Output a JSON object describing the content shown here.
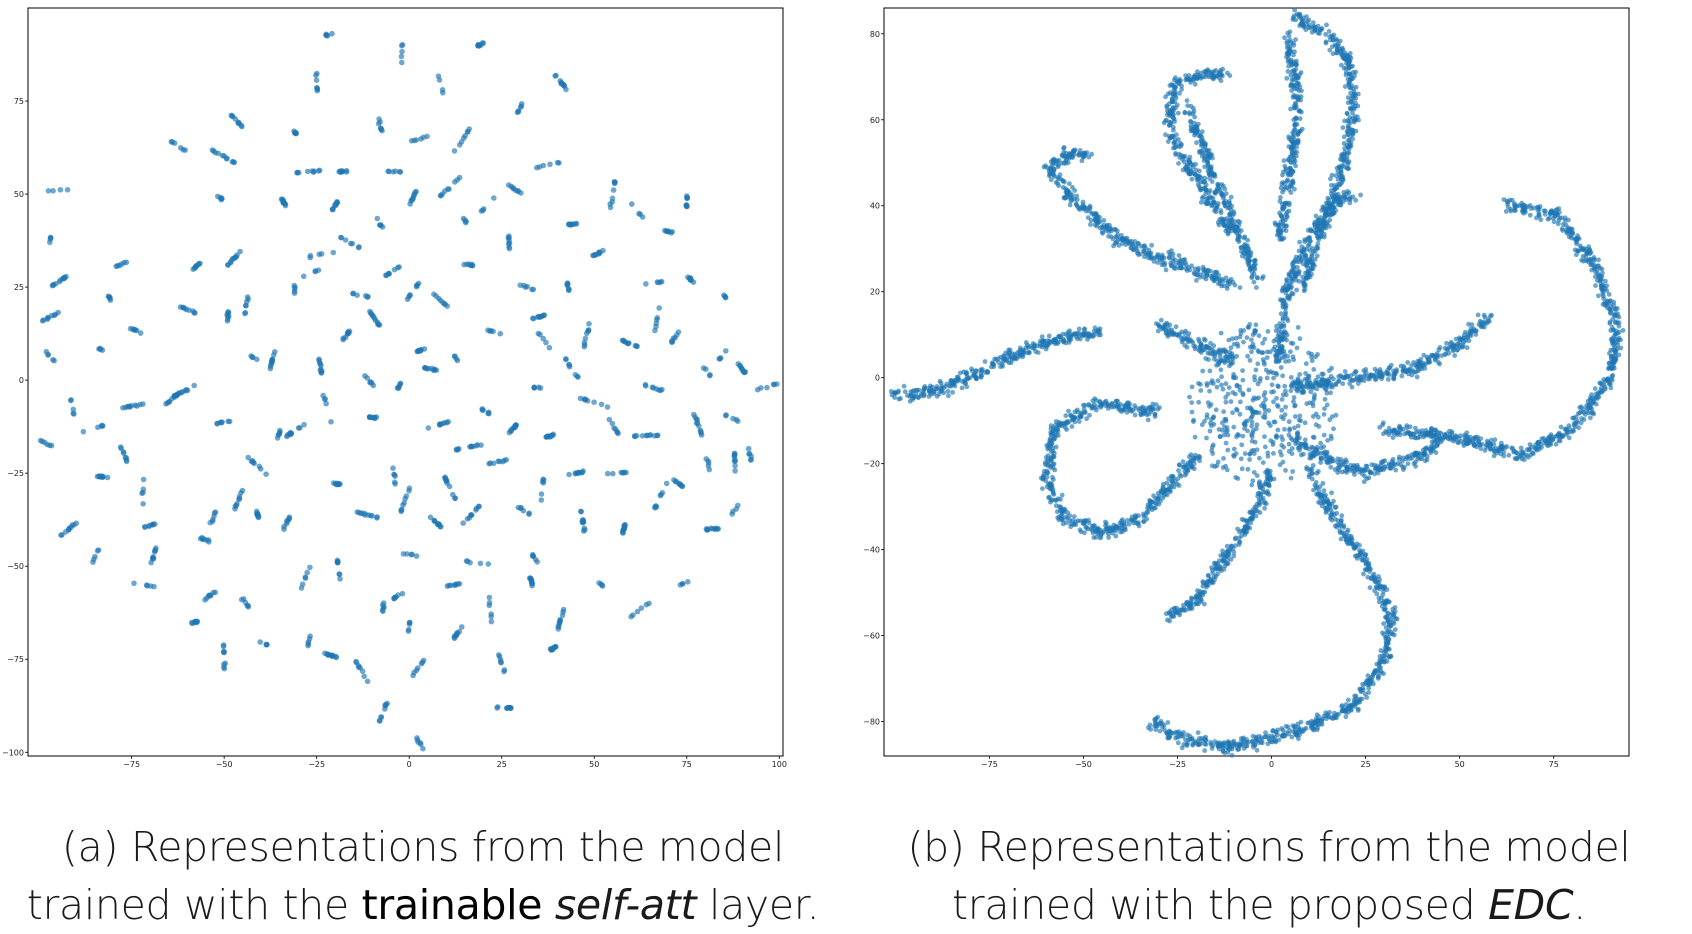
{
  "colors": {
    "marker": "#1f77b4",
    "axis": "#000000",
    "caption_text": "#1a1a1a"
  },
  "captions": {
    "a": {
      "line1": "(a) Representations from the model",
      "line2_prefix": "trained with the ",
      "line2_bold": "trainable",
      "line2_space": " ",
      "line2_italic": "self-att",
      "line2_suffix": " layer."
    },
    "b": {
      "line1": "(b) Representations from the model",
      "line2_prefix": "trained with the proposed ",
      "line2_italic": "EDC",
      "line2_suffix": "."
    }
  },
  "chart_data": [
    {
      "type": "scatter",
      "title": "",
      "xlabel": "",
      "ylabel": "",
      "xlim": [
        -103,
        101
      ],
      "ylim": [
        -101,
        100
      ],
      "xticks": [
        -75,
        -50,
        -25,
        0,
        25,
        50,
        75,
        100
      ],
      "xtick_labels": [
        "−75",
        "−50",
        "−25",
        "0",
        "25",
        "50",
        "75",
        "100"
      ],
      "yticks": [
        -100,
        -75,
        -50,
        -25,
        0,
        25,
        50,
        75
      ],
      "ytick_labels": [
        "−100",
        "−75",
        "−50",
        "−25",
        "0",
        "25",
        "50",
        "75"
      ],
      "grid": false,
      "marker_alpha": 0.65,
      "cluster_centers": [
        [
          -95,
          51
        ],
        [
          -97,
          38
        ],
        [
          -97,
          17
        ],
        [
          -94,
          27
        ],
        [
          -96,
          5
        ],
        [
          -91,
          -7
        ],
        [
          -98,
          -17
        ],
        [
          -92,
          -40
        ],
        [
          -85,
          -48
        ],
        [
          -83,
          -26
        ],
        [
          -85,
          -13
        ],
        [
          -83,
          8
        ],
        [
          -81,
          22
        ],
        [
          -78,
          31
        ],
        [
          -73,
          13
        ],
        [
          -77,
          -20
        ],
        [
          -75,
          -7
        ],
        [
          -72,
          -30
        ],
        [
          -72,
          -55
        ],
        [
          -69,
          -47
        ],
        [
          -70,
          -39
        ],
        [
          -64,
          64
        ],
        [
          -64,
          -5
        ],
        [
          -60,
          19
        ],
        [
          -57,
          31
        ],
        [
          -61,
          -3
        ],
        [
          -58,
          -65
        ],
        [
          -54,
          -58
        ],
        [
          -50,
          -74
        ],
        [
          -55,
          -43
        ],
        [
          -53,
          -37
        ],
        [
          -51,
          49
        ],
        [
          -49,
          -11
        ],
        [
          -47,
          33
        ],
        [
          -49,
          17
        ],
        [
          -50,
          60
        ],
        [
          -46,
          -32
        ],
        [
          -41,
          -23
        ],
        [
          -44,
          -60
        ],
        [
          -47,
          70
        ],
        [
          -44,
          20
        ],
        [
          -42,
          6
        ],
        [
          -41,
          -36
        ],
        [
          -39,
          -71
        ],
        [
          -37,
          5
        ],
        [
          -35,
          -14
        ],
        [
          -33,
          -38
        ],
        [
          -34,
          48
        ],
        [
          -32,
          68
        ],
        [
          -31,
          23
        ],
        [
          -30,
          -13
        ],
        [
          -27,
          56
        ],
        [
          -26,
          29
        ],
        [
          -28,
          -53
        ],
        [
          -24,
          4
        ],
        [
          -27,
          -70
        ],
        [
          -25,
          80
        ],
        [
          -23,
          34
        ],
        [
          -22,
          -8
        ],
        [
          -21,
          -74
        ],
        [
          -21,
          93
        ],
        [
          -20,
          47
        ],
        [
          -17,
          12
        ],
        [
          -19,
          -28
        ],
        [
          -19,
          -51
        ],
        [
          -18,
          56
        ],
        [
          -16,
          37
        ],
        [
          -14,
          23
        ],
        [
          -13,
          -78
        ],
        [
          -12,
          -36
        ],
        [
          -11,
          0
        ],
        [
          -10,
          -10
        ],
        [
          -9,
          16
        ],
        [
          -8,
          42
        ],
        [
          -8,
          69
        ],
        [
          -7,
          -61
        ],
        [
          -7,
          -89
        ],
        [
          -4,
          -26
        ],
        [
          -5,
          29
        ],
        [
          -4,
          56
        ],
        [
          -2,
          88
        ],
        [
          -3,
          -2
        ],
        [
          -3,
          -58
        ],
        [
          -1,
          -32
        ],
        [
          1,
          -47
        ],
        [
          1,
          49
        ],
        [
          1,
          24
        ],
        [
          0,
          -66
        ],
        [
          2,
          -78
        ],
        [
          3,
          8
        ],
        [
          3,
          65
        ],
        [
          3,
          -98
        ],
        [
          6,
          3
        ],
        [
          7,
          -38
        ],
        [
          8,
          -12
        ],
        [
          9,
          21
        ],
        [
          9,
          78
        ],
        [
          11,
          -29
        ],
        [
          11,
          52
        ],
        [
          12,
          -55
        ],
        [
          13,
          -68
        ],
        [
          13,
          5
        ],
        [
          14,
          64
        ],
        [
          15,
          43
        ],
        [
          16,
          -18
        ],
        [
          17,
          31
        ],
        [
          17,
          -36
        ],
        [
          18,
          -49
        ],
        [
          19,
          90
        ],
        [
          20,
          -8
        ],
        [
          21,
          47
        ],
        [
          22,
          -62
        ],
        [
          23,
          13
        ],
        [
          24,
          -22
        ],
        [
          25,
          -76
        ],
        [
          26,
          -88
        ],
        [
          27,
          37
        ],
        [
          28,
          -13
        ],
        [
          29,
          51
        ],
        [
          30,
          73
        ],
        [
          31,
          -35
        ],
        [
          32,
          25
        ],
        [
          33,
          -54
        ],
        [
          34,
          -2
        ],
        [
          34,
          -48
        ],
        [
          35,
          17
        ],
        [
          36,
          -29
        ],
        [
          37,
          10
        ],
        [
          38,
          -15
        ],
        [
          38,
          58
        ],
        [
          39,
          -72
        ],
        [
          41,
          80
        ],
        [
          41,
          -64
        ],
        [
          43,
          25
        ],
        [
          44,
          3
        ],
        [
          45,
          -25
        ],
        [
          45,
          42
        ],
        [
          47,
          -38
        ],
        [
          48,
          12
        ],
        [
          50,
          -6
        ],
        [
          51,
          34
        ],
        [
          52,
          -55
        ],
        [
          55,
          50
        ],
        [
          55,
          -12
        ],
        [
          56,
          -25
        ],
        [
          58,
          -40
        ],
        [
          59,
          10
        ],
        [
          62,
          45
        ],
        [
          62,
          -62
        ],
        [
          63,
          -15
        ],
        [
          65,
          26
        ],
        [
          66,
          -2
        ],
        [
          67,
          17
        ],
        [
          68,
          -31
        ],
        [
          70,
          40
        ],
        [
          72,
          12
        ],
        [
          73,
          -28
        ],
        [
          75,
          48
        ],
        [
          76,
          -54
        ],
        [
          76,
          27
        ],
        [
          78,
          -12
        ],
        [
          80,
          3
        ],
        [
          81,
          -23
        ],
        [
          82,
          -40
        ],
        [
          85,
          23
        ],
        [
          85,
          7
        ],
        [
          87,
          -10
        ],
        [
          88,
          -22
        ],
        [
          88,
          -35
        ],
        [
          90,
          3
        ],
        [
          92,
          -20
        ],
        [
          96,
          -2
        ]
      ]
    },
    {
      "type": "scatter",
      "title": "",
      "xlabel": "",
      "ylabel": "",
      "xlim": [
        -103,
        95
      ],
      "ylim": [
        -88,
        86
      ],
      "xticks": [
        -75,
        -50,
        -25,
        0,
        25,
        50,
        75
      ],
      "xtick_labels": [
        "−75",
        "−50",
        "−25",
        "0",
        "25",
        "50",
        "75"
      ],
      "yticks": [
        -80,
        -60,
        -40,
        -20,
        0,
        20,
        40,
        60,
        80
      ],
      "ytick_labels": [
        "−80",
        "−60",
        "−40",
        "−20",
        "0",
        "20",
        "40",
        "60",
        "80"
      ],
      "grid": false,
      "marker_alpha": 0.65,
      "arms": [
        [
          [
            -100,
            -4
          ],
          [
            -88,
            -3
          ],
          [
            -76,
            2
          ],
          [
            -66,
            6
          ],
          [
            -57,
            9
          ],
          [
            -50,
            10
          ],
          [
            -45,
            11
          ]
        ],
        [
          [
            -10,
            22
          ],
          [
            -20,
            25
          ],
          [
            -30,
            28
          ],
          [
            -42,
            33
          ],
          [
            -53,
            42
          ],
          [
            -59,
            48
          ],
          [
            -55,
            52
          ],
          [
            -48,
            52
          ]
        ],
        [
          [
            -11,
            34
          ],
          [
            -21,
            48
          ],
          [
            -27,
            57
          ],
          [
            -26,
            68
          ],
          [
            -18,
            71
          ],
          [
            -12,
            70
          ]
        ],
        [
          [
            -3,
            22
          ],
          [
            -8,
            32
          ],
          [
            -14,
            44
          ],
          [
            -20,
            57
          ],
          [
            -22,
            63
          ]
        ],
        [
          [
            2,
            4
          ],
          [
            4,
            20
          ],
          [
            10,
            33
          ],
          [
            16,
            40
          ],
          [
            22,
            43
          ]
        ],
        [
          [
            8,
            20
          ],
          [
            14,
            36
          ],
          [
            20,
            52
          ],
          [
            22,
            64
          ],
          [
            20,
            74
          ],
          [
            14,
            80
          ],
          [
            6,
            84
          ]
        ],
        [
          [
            2,
            32
          ],
          [
            5,
            48
          ],
          [
            7,
            62
          ],
          [
            6,
            72
          ],
          [
            4,
            80
          ]
        ],
        [
          [
            30,
            -12
          ],
          [
            50,
            -14
          ],
          [
            66,
            -18
          ],
          [
            80,
            -12
          ],
          [
            90,
            0
          ],
          [
            92,
            12
          ],
          [
            86,
            26
          ],
          [
            76,
            38
          ],
          [
            63,
            40
          ]
        ],
        [
          [
            6,
            -2
          ],
          [
            22,
            0
          ],
          [
            38,
            2
          ],
          [
            50,
            8
          ],
          [
            58,
            14
          ]
        ],
        [
          [
            6,
            -14
          ],
          [
            16,
            -20
          ],
          [
            26,
            -22
          ],
          [
            40,
            -18
          ],
          [
            45,
            -14
          ]
        ],
        [
          [
            -30,
            -8
          ],
          [
            -46,
            -6
          ],
          [
            -58,
            -12
          ],
          [
            -60,
            -24
          ],
          [
            -55,
            -33
          ],
          [
            -45,
            -36
          ],
          [
            -34,
            -32
          ],
          [
            -26,
            -24
          ],
          [
            -20,
            -18
          ]
        ],
        [
          [
            0,
            -22
          ],
          [
            -6,
            -34
          ],
          [
            -14,
            -44
          ],
          [
            -20,
            -52
          ],
          [
            -28,
            -56
          ]
        ],
        [
          [
            10,
            -22
          ],
          [
            18,
            -34
          ],
          [
            26,
            -44
          ],
          [
            32,
            -56
          ],
          [
            30,
            -66
          ],
          [
            22,
            -76
          ],
          [
            8,
            -82
          ],
          [
            -10,
            -86
          ],
          [
            -24,
            -84
          ],
          [
            -32,
            -80
          ]
        ],
        [
          [
            -10,
            4
          ],
          [
            -20,
            8
          ],
          [
            -30,
            12
          ]
        ]
      ]
    }
  ]
}
